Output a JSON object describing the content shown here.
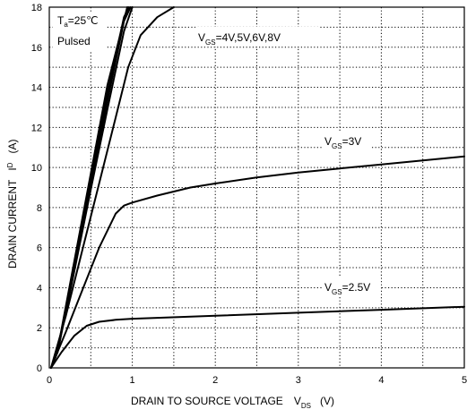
{
  "chart_data": {
    "type": "line",
    "xlabel": "DRAIN TO SOURCE VOLTAGE",
    "xlabel_symbol": "V",
    "xlabel_subscript": "DS",
    "xlabel_unit": "(V)",
    "ylabel": "DRAIN CURRENT",
    "ylabel_symbol": "I",
    "ylabel_subscript": "D",
    "ylabel_unit": "(A)",
    "xlim": [
      0,
      5
    ],
    "ylim": [
      0,
      18
    ],
    "x_ticks": [
      "0",
      "1",
      "2",
      "3",
      "4",
      "5"
    ],
    "y_ticks": [
      "0",
      "2",
      "4",
      "6",
      "8",
      "10",
      "12",
      "14",
      "16",
      "18"
    ],
    "grid": "dotted, major and minor",
    "conditions": {
      "ta_symbol": "T",
      "ta_subscript": "a",
      "ta_value": "=25℃",
      "pulsed": "Pulsed"
    },
    "series": [
      {
        "name": "VGS=4V",
        "group": "high",
        "x": [
          0.02,
          0.1,
          0.3,
          0.5,
          0.7,
          0.9,
          1.0
        ],
        "y": [
          0,
          0.8,
          4.8,
          8.9,
          12.9,
          16.8,
          18
        ]
      },
      {
        "name": "VGS=5V",
        "group": "high",
        "x": [
          0.02,
          0.1,
          0.3,
          0.5,
          0.7,
          0.9,
          0.98
        ],
        "y": [
          0,
          0.8,
          5.0,
          9.2,
          13.3,
          17.3,
          18
        ]
      },
      {
        "name": "VGS=6V",
        "group": "high",
        "x": [
          0.02,
          0.1,
          0.3,
          0.5,
          0.7,
          0.9,
          0.96
        ],
        "y": [
          0,
          0.8,
          5.1,
          9.4,
          13.7,
          17.5,
          18
        ]
      },
      {
        "name": "VGS=8V",
        "group": "high",
        "x": [
          0.02,
          0.1,
          0.3,
          0.5,
          0.7,
          0.94
        ],
        "y": [
          0,
          0.9,
          5.3,
          9.7,
          14.1,
          18
        ]
      },
      {
        "name": "VGS=4V",
        "group": "high-knee",
        "x": [
          0.02,
          0.2,
          0.4,
          0.6,
          0.8,
          0.95,
          1.1,
          1.3,
          1.5
        ],
        "y": [
          0,
          2.6,
          5.9,
          9.2,
          12.5,
          15.0,
          16.6,
          17.5,
          18
        ]
      },
      {
        "name": "VGS=3V",
        "x": [
          0.02,
          0.2,
          0.4,
          0.6,
          0.8,
          0.9,
          1.0,
          1.3,
          1.7,
          2.0,
          2.5,
          3.0,
          3.5,
          4.0,
          4.5,
          5.0
        ],
        "y": [
          0,
          1.8,
          3.9,
          6.0,
          7.7,
          8.1,
          8.25,
          8.6,
          9.0,
          9.2,
          9.5,
          9.75,
          9.95,
          10.15,
          10.35,
          10.55
        ]
      },
      {
        "name": "VGS=2.5V",
        "x": [
          0.02,
          0.15,
          0.3,
          0.45,
          0.6,
          0.8,
          1.0,
          2.0,
          3.0,
          4.0,
          5.0
        ],
        "y": [
          0,
          0.8,
          1.6,
          2.1,
          2.3,
          2.4,
          2.45,
          2.6,
          2.75,
          2.9,
          3.05
        ]
      }
    ],
    "annotations": [
      {
        "prefix": "V",
        "subscript": "GS",
        "text": "=4V,5V,6V,8V"
      },
      {
        "prefix": "V",
        "subscript": "GS",
        "text": "=3V"
      },
      {
        "prefix": "V",
        "subscript": "GS",
        "text": "=2.5V"
      }
    ]
  }
}
